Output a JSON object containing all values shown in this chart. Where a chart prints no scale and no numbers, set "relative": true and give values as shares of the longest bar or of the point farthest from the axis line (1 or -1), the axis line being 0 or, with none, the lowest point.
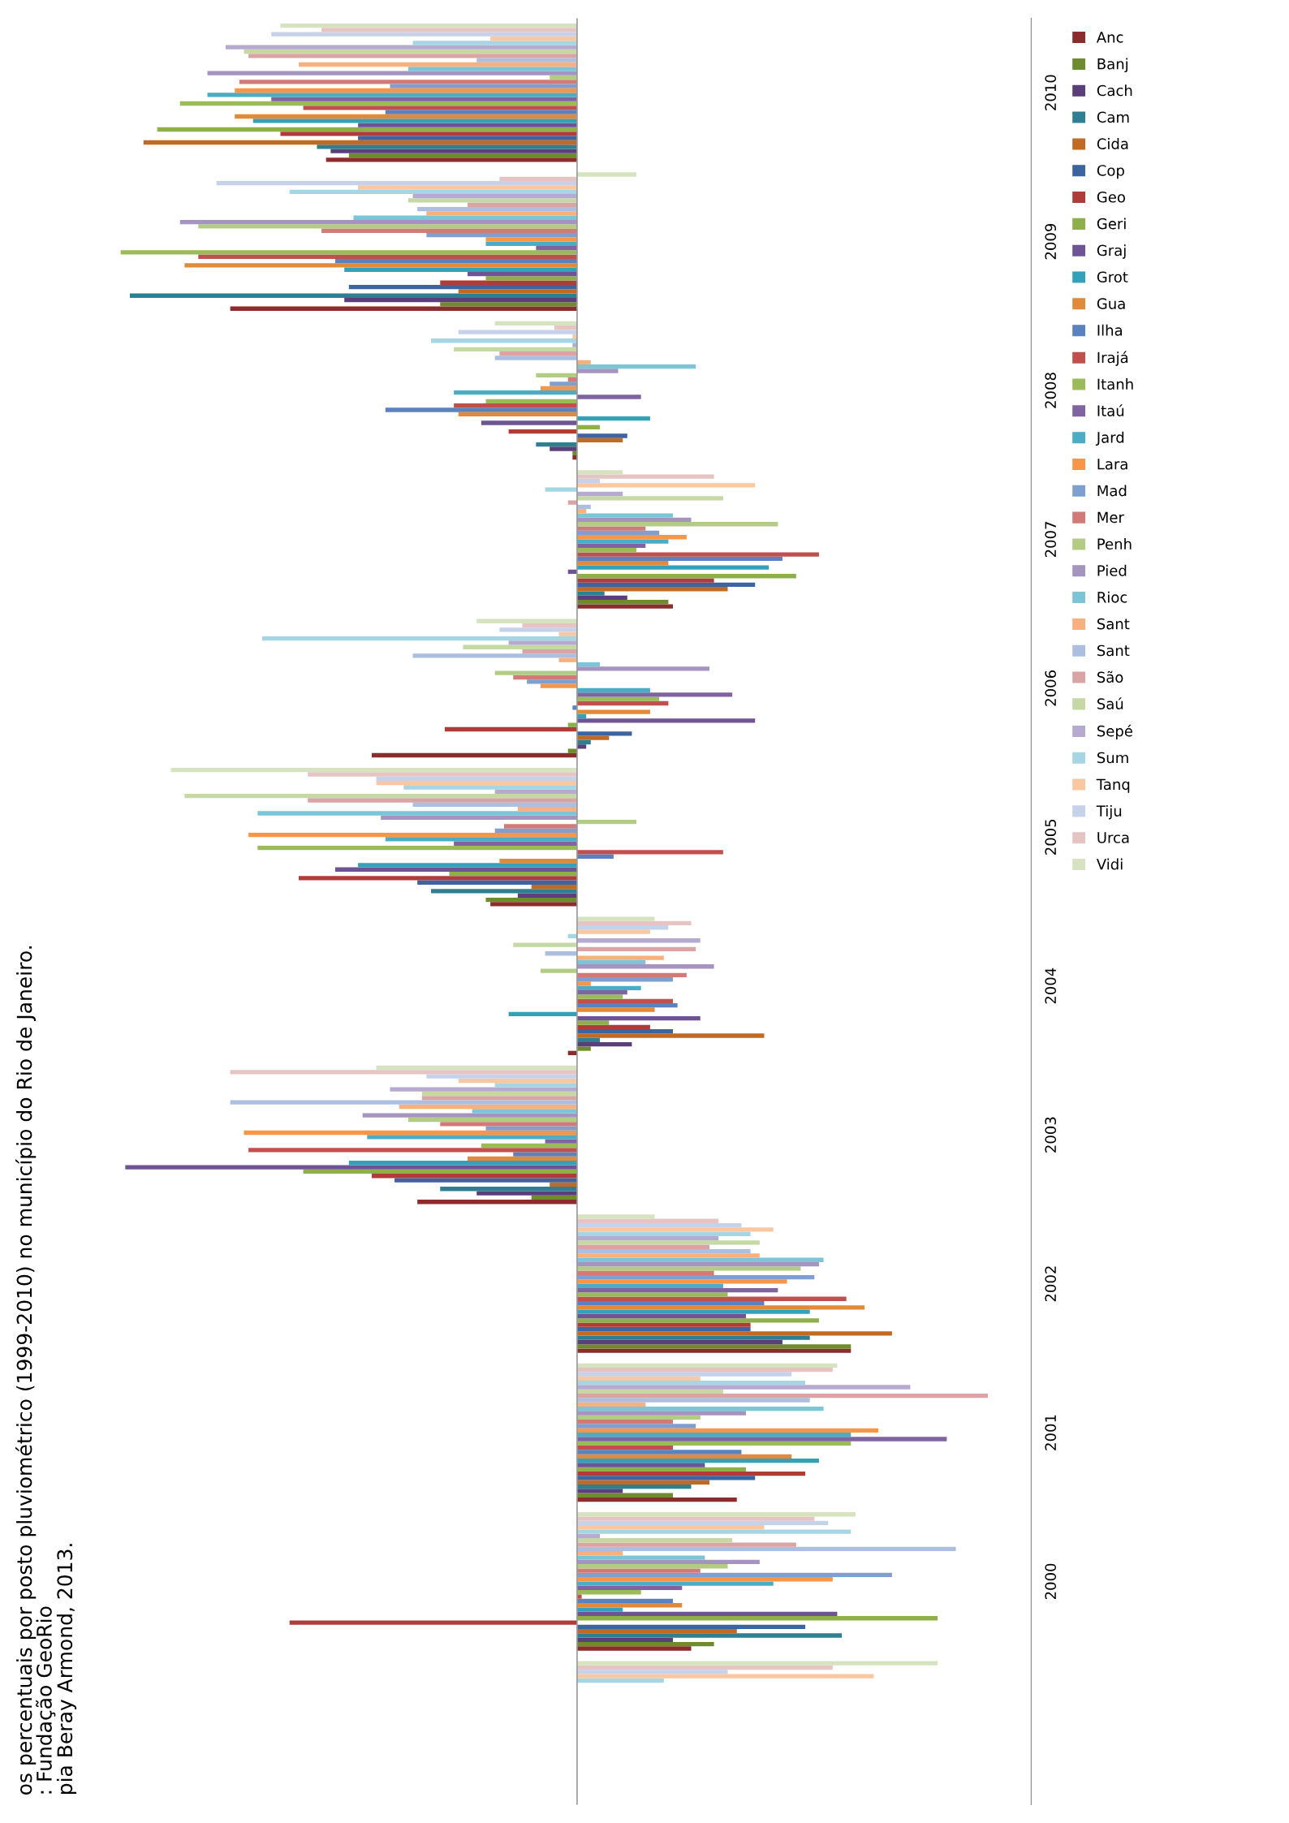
{
  "chart_data": {
    "type": "bar",
    "orientation": "horizontal",
    "relative": true,
    "legend": "right",
    "categories": [
      "2010",
      "2009",
      "2008",
      "2007",
      "2006",
      "2005",
      "2004",
      "2003",
      "2002",
      "2001",
      "2000",
      null
    ],
    "annotations": [
      "os percentuais por posto pluviométrico (1999-2010) no município do Rio de Janeiro.",
      ": Fundação GeoRio",
      "pia Beray Armond, 2013."
    ],
    "series": [
      {
        "name": "Anc",
        "color": "#8b2d2d",
        "values": [
          -0.55,
          -0.76,
          -0.01,
          0.21,
          -0.45,
          -0.19,
          -0.02,
          -0.35,
          0.6,
          0.35,
          0.25,
          null
        ]
      },
      {
        "name": "Banj",
        "color": "#6e8b2e",
        "values": [
          -0.5,
          -0.3,
          -0.01,
          0.2,
          -0.02,
          -0.2,
          0.03,
          -0.1,
          0.6,
          0.21,
          0.3,
          null
        ]
      },
      {
        "name": "Cach",
        "color": "#5b3f7a",
        "values": [
          -0.54,
          -0.51,
          -0.06,
          0.11,
          0.02,
          -0.13,
          0.12,
          -0.22,
          0.45,
          0.1,
          0.21,
          null
        ]
      },
      {
        "name": "Cam",
        "color": "#2e7f91",
        "values": [
          -0.57,
          -0.98,
          -0.09,
          0.06,
          0.03,
          -0.32,
          0.05,
          -0.3,
          0.51,
          0.25,
          0.58,
          null
        ]
      },
      {
        "name": "Cida",
        "color": "#c06a24",
        "values": [
          -0.95,
          -0.26,
          0.1,
          0.33,
          0.07,
          -0.1,
          0.41,
          -0.06,
          0.69,
          0.29,
          0.35,
          null
        ]
      },
      {
        "name": "Cop",
        "color": "#3b64a0",
        "values": [
          -0.48,
          -0.5,
          0.11,
          0.39,
          0.12,
          -0.35,
          0.21,
          -0.4,
          0.38,
          0.39,
          0.5,
          null
        ]
      },
      {
        "name": "Geo",
        "color": "#b03c3a",
        "values": [
          -0.65,
          -0.3,
          -0.15,
          0.3,
          -0.29,
          -0.61,
          0.16,
          -0.45,
          0.38,
          0.5,
          -0.63,
          null
        ]
      },
      {
        "name": "Geri",
        "color": "#8faf4a",
        "values": [
          -0.92,
          -0.2,
          0.05,
          0.48,
          -0.02,
          -0.28,
          0.07,
          -0.6,
          0.53,
          0.37,
          0.79,
          null
        ]
      },
      {
        "name": "Graj",
        "color": "#6e5495",
        "values": [
          -0.48,
          -0.24,
          -0.21,
          -0.02,
          0.39,
          -0.53,
          0.27,
          -0.99,
          0.37,
          0.28,
          0.57,
          null
        ]
      },
      {
        "name": "Grot",
        "color": "#34a1bb",
        "values": [
          -0.71,
          -0.51,
          0.16,
          0.42,
          0.02,
          -0.48,
          -0.15,
          -0.5,
          0.51,
          0.53,
          0.1,
          null
        ]
      },
      {
        "name": "Gua",
        "color": "#e08a3a",
        "values": [
          -0.75,
          -0.86,
          -0.26,
          0.2,
          0.16,
          -0.17,
          0.17,
          -0.24,
          0.63,
          0.47,
          0.23,
          null
        ]
      },
      {
        "name": "Ilha",
        "color": "#5a82c0",
        "values": [
          -0.42,
          -0.53,
          -0.42,
          0.45,
          -0.01,
          0.08,
          0.22,
          -0.14,
          0.41,
          0.36,
          0.21,
          null
        ]
      },
      {
        "name": "Irajá",
        "color": "#c0504d",
        "values": [
          -0.6,
          -0.83,
          -0.27,
          0.53,
          0.2,
          0.32,
          0.21,
          -0.72,
          0.59,
          0.21,
          0.01,
          null
        ]
      },
      {
        "name": "Itanh",
        "color": "#9bbb59",
        "values": [
          -0.87,
          -1.0,
          -0.2,
          0.13,
          0.18,
          -0.7,
          0.1,
          -0.21,
          0.33,
          0.6,
          0.14,
          null
        ]
      },
      {
        "name": "Itaú",
        "color": "#8064a2",
        "values": [
          -0.67,
          -0.09,
          0.14,
          0.15,
          0.34,
          -0.27,
          0.11,
          -0.07,
          0.44,
          0.81,
          0.23,
          null
        ]
      },
      {
        "name": "Jard",
        "color": "#4bacc6",
        "values": [
          -0.81,
          -0.2,
          -0.27,
          0.2,
          0.16,
          -0.42,
          0.14,
          -0.46,
          0.32,
          0.6,
          0.43,
          null
        ]
      },
      {
        "name": "Lara",
        "color": "#f79646",
        "values": [
          -0.75,
          -0.2,
          -0.08,
          0.24,
          -0.08,
          -0.72,
          0.03,
          -0.73,
          0.46,
          0.66,
          0.56,
          null
        ]
      },
      {
        "name": "Mad",
        "color": "#7f9fd0",
        "values": [
          -0.41,
          -0.33,
          -0.06,
          0.18,
          -0.11,
          -0.18,
          0.21,
          -0.2,
          0.52,
          0.26,
          0.69,
          null
        ]
      },
      {
        "name": "Mer",
        "color": "#d27a78",
        "values": [
          -0.74,
          -0.56,
          -0.02,
          0.15,
          -0.14,
          -0.16,
          0.24,
          -0.3,
          0.3,
          0.21,
          0.27,
          null
        ]
      },
      {
        "name": "Penh",
        "color": "#b3cc84",
        "values": [
          -0.06,
          -0.83,
          -0.09,
          0.44,
          -0.18,
          0.13,
          -0.08,
          -0.37,
          0.49,
          0.27,
          0.33,
          null
        ]
      },
      {
        "name": "Pied",
        "color": "#a594c0",
        "values": [
          -0.81,
          -0.87,
          0.09,
          0.25,
          0.29,
          -0.43,
          0.3,
          -0.47,
          0.53,
          0.37,
          0.4,
          null
        ]
      },
      {
        "name": "Rioc",
        "color": "#7cc4d8",
        "values": [
          -0.37,
          -0.49,
          0.26,
          0.21,
          0.05,
          -0.7,
          0.15,
          -0.23,
          0.54,
          0.54,
          0.28,
          null
        ]
      },
      {
        "name": "Sant",
        "color": "#f8b07c",
        "values": [
          -0.61,
          -0.33,
          0.03,
          0.02,
          -0.04,
          -0.13,
          0.19,
          -0.39,
          0.4,
          0.15,
          0.1,
          null
        ]
      },
      {
        "name": "Sant",
        "color": "#adbfe0",
        "values": [
          -0.22,
          -0.35,
          -0.18,
          0.03,
          -0.36,
          -0.36,
          -0.07,
          -0.76,
          0.38,
          0.51,
          0.83,
          null
        ]
      },
      {
        "name": "São",
        "color": "#d9a4a3",
        "values": [
          -0.72,
          -0.24,
          -0.17,
          -0.02,
          -0.12,
          -0.59,
          0.26,
          -0.34,
          0.29,
          0.9,
          0.48,
          null
        ]
      },
      {
        "name": "Saú",
        "color": "#c6d8a4",
        "values": [
          -0.73,
          -0.37,
          -0.27,
          0.32,
          -0.25,
          -0.86,
          -0.14,
          -0.34,
          0.4,
          0.32,
          0.34,
          null
        ]
      },
      {
        "name": "Sepé",
        "color": "#b6aad0",
        "values": [
          -0.77,
          -0.36,
          -0.01,
          0.1,
          -0.15,
          -0.18,
          0.27,
          -0.41,
          0.31,
          0.73,
          0.05,
          null
        ]
      },
      {
        "name": "Sum",
        "color": "#a6d5e3",
        "values": [
          -0.36,
          -0.63,
          -0.32,
          -0.07,
          -0.69,
          -0.38,
          -0.02,
          -0.18,
          0.38,
          0.5,
          0.6,
          0.19
        ]
      },
      {
        "name": "Tanq",
        "color": "#f9c8a0",
        "values": [
          -0.19,
          -0.48,
          -0.01,
          0.39,
          -0.04,
          -0.44,
          0.16,
          -0.26,
          0.43,
          0.27,
          0.41,
          0.65
        ]
      },
      {
        "name": "Tiju",
        "color": "#c6d2ea",
        "values": [
          -0.67,
          -0.79,
          -0.26,
          0.05,
          -0.17,
          -0.44,
          0.2,
          -0.33,
          0.36,
          0.47,
          0.55,
          0.33
        ]
      },
      {
        "name": "Urca",
        "color": "#e6c4c4",
        "values": [
          -0.56,
          -0.17,
          -0.05,
          0.3,
          -0.12,
          -0.59,
          0.25,
          -0.76,
          0.31,
          0.56,
          0.52,
          0.56
        ]
      },
      {
        "name": "Vidi",
        "color": "#d7e3c0",
        "values": [
          -0.65,
          0.13,
          -0.18,
          0.1,
          -0.22,
          -0.89,
          0.17,
          -0.44,
          0.17,
          0.57,
          0.61,
          0.79
        ]
      }
    ]
  }
}
